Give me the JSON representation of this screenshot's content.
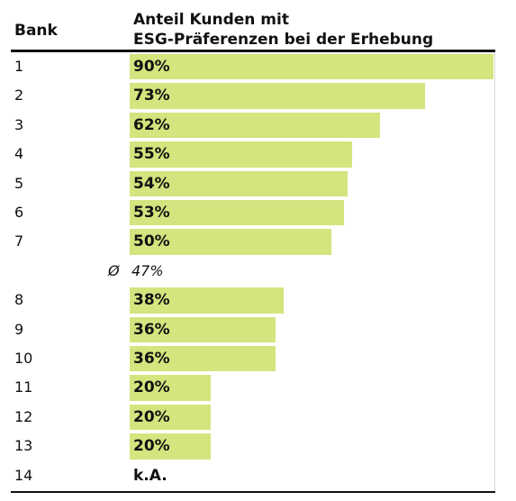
{
  "chart_data": {
    "type": "bar",
    "orientation": "horizontal",
    "column_headers": {
      "bank": "Bank",
      "value_line1": "Anteil Kunden mit",
      "value_line2": "ESG-Präferenzen bei der Erhebung"
    },
    "rows": [
      {
        "label": "1",
        "value": 90,
        "text": "90%"
      },
      {
        "label": "2",
        "value": 73,
        "text": "73%"
      },
      {
        "label": "3",
        "value": 62,
        "text": "62%"
      },
      {
        "label": "4",
        "value": 55,
        "text": "55%"
      },
      {
        "label": "5",
        "value": 54,
        "text": "54%"
      },
      {
        "label": "6",
        "value": 53,
        "text": "53%"
      },
      {
        "label": "7",
        "value": 50,
        "text": "50%"
      },
      {
        "label": "Ø",
        "value": 47,
        "text": "47%",
        "is_average": true
      },
      {
        "label": "8",
        "value": 38,
        "text": "38%"
      },
      {
        "label": "9",
        "value": 36,
        "text": "36%"
      },
      {
        "label": "10",
        "value": 36,
        "text": "36%"
      },
      {
        "label": "11",
        "value": 20,
        "text": "20%"
      },
      {
        "label": "12",
        "value": 20,
        "text": "20%"
      },
      {
        "label": "13",
        "value": 20,
        "text": "20%"
      },
      {
        "label": "14",
        "value": null,
        "text": "k.A."
      }
    ],
    "xlim": [
      0,
      90
    ],
    "bar_color": "#d4e47e"
  }
}
